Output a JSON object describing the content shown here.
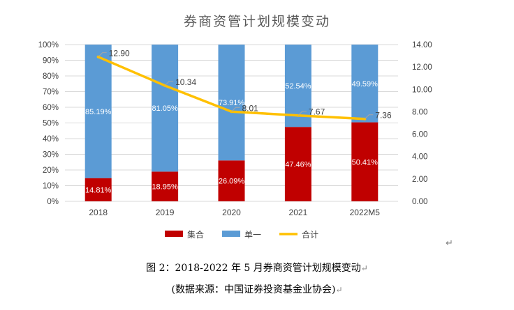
{
  "chart_data": {
    "type": "bar",
    "subtype": "stacked-percent-bar-with-line",
    "title": "券商资管计划规模变动",
    "categories": [
      "2018",
      "2019",
      "2020",
      "2021",
      "2022M5"
    ],
    "series": [
      {
        "name": "集合",
        "axis": "left",
        "kind": "bar",
        "color": "#C00000",
        "values": [
          14.81,
          18.95,
          26.09,
          47.46,
          50.41
        ],
        "labels": [
          "14.81%",
          "18.95%",
          "26.09%",
          "47.46%",
          "50.41%"
        ]
      },
      {
        "name": "单一",
        "axis": "left",
        "kind": "bar",
        "color": "#5B9BD5",
        "values": [
          85.19,
          81.05,
          73.91,
          52.54,
          49.59
        ],
        "labels": [
          "85.19%",
          "81.05%",
          "73.91%",
          "52.54%",
          "49.59%"
        ]
      },
      {
        "name": "合计",
        "axis": "right",
        "kind": "line",
        "color": "#FFC000",
        "values": [
          12.9,
          10.34,
          8.01,
          7.67,
          7.36
        ],
        "labels": [
          "12.90",
          "10.34",
          "8.01",
          "7.67",
          "7.36"
        ]
      }
    ],
    "y_left": {
      "min": 0,
      "max": 100,
      "step": 10,
      "ticks": [
        "0%",
        "10%",
        "20%",
        "30%",
        "40%",
        "50%",
        "60%",
        "70%",
        "80%",
        "90%",
        "100%"
      ]
    },
    "y_right": {
      "min": 0,
      "max": 14,
      "step": 2,
      "ticks": [
        "0.00",
        "2.00",
        "4.00",
        "6.00",
        "8.00",
        "10.00",
        "12.00",
        "14.00"
      ]
    },
    "legend": [
      "集合",
      "单一",
      "合计"
    ],
    "legend_position": "bottom"
  },
  "caption": {
    "figure": "图 2：2018-2022 年 5 月券商资管计划规模变动",
    "source": "(数据来源：中国证券投资基金业协会)"
  },
  "marks": {
    "paragraph": "↵"
  }
}
